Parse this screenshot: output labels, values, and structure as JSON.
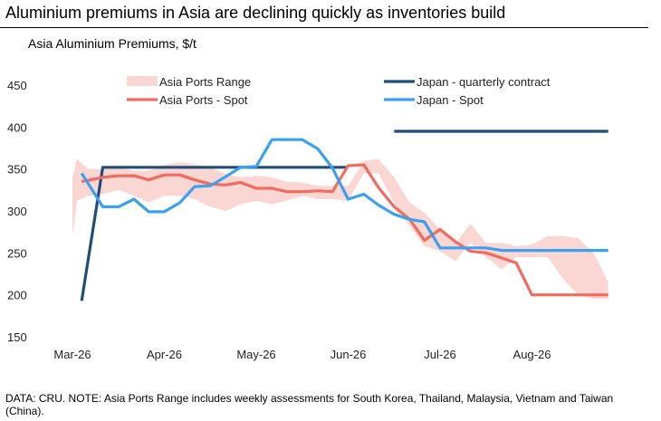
{
  "title": "Aluminium premiums in Asia are declining quickly as inventories build",
  "chart_data": {
    "type": "line",
    "title": "Asia Aluminium Premiums, $/t",
    "xlabel": "",
    "ylabel": "",
    "ylim": [
      150,
      450
    ],
    "yticks": [
      150,
      200,
      250,
      300,
      350,
      400,
      450
    ],
    "xticks": [
      "Mar-26",
      "Apr-26",
      "May-26",
      "Jun-26",
      "Jul-26",
      "Aug-26"
    ],
    "x_start": "Mar-26",
    "x_end": "Sep-26",
    "grid": false,
    "legend_position": "top",
    "legend": [
      "Asia Ports Range",
      "Japan - quarterly contract",
      "Asia Ports - Spot",
      "Japan - Spot"
    ],
    "band": {
      "name": "Asia Ports Range",
      "color": "#fbd7d4",
      "x": [
        0.0,
        0.05,
        0.17,
        0.33,
        0.5,
        0.67,
        0.83,
        1.0,
        1.17,
        1.33,
        1.5,
        1.67,
        1.83,
        2.0,
        2.17,
        2.33,
        2.5,
        2.67,
        2.83,
        3.0,
        3.17,
        3.33,
        3.5,
        3.67,
        3.83,
        4.0,
        4.17,
        4.33,
        4.5,
        4.67,
        4.83,
        5.0,
        5.17,
        5.33,
        5.5,
        5.67,
        5.83
      ],
      "low": [
        270,
        312,
        318,
        320,
        325,
        318,
        310,
        318,
        318,
        314,
        305,
        300,
        308,
        312,
        308,
        312,
        318,
        314,
        314,
        312,
        345,
        345,
        310,
        282,
        258,
        252,
        240,
        262,
        245,
        230,
        245,
        245,
        245,
        220,
        200,
        195,
        195
      ],
      "high": [
        340,
        362,
        350,
        350,
        352,
        348,
        348,
        355,
        358,
        356,
        352,
        344,
        340,
        342,
        340,
        335,
        334,
        330,
        330,
        330,
        360,
        362,
        340,
        310,
        298,
        278,
        262,
        285,
        262,
        262,
        258,
        260,
        270,
        270,
        268,
        250,
        215
      ]
    },
    "series": [
      {
        "name": "Japan - quarterly contract",
        "color": "#1f4e79",
        "segments": [
          {
            "x": [
              0.1,
              0.33,
              3.0
            ],
            "values": [
              193,
              352,
              352
            ]
          },
          {
            "x": [
              3.5,
              5.83
            ],
            "values": [
              395,
              395
            ]
          }
        ]
      },
      {
        "name": "Asia Ports - Spot",
        "color": "#f26b5e",
        "x": [
          0.1,
          0.33,
          0.5,
          0.67,
          0.83,
          1.0,
          1.17,
          1.33,
          1.5,
          1.67,
          1.83,
          2.0,
          2.17,
          2.33,
          2.5,
          2.67,
          2.83,
          3.0,
          3.17,
          3.33,
          3.5,
          3.67,
          3.83,
          4.0,
          4.17,
          4.33,
          4.5,
          4.67,
          4.83,
          5.0,
          5.17,
          5.33,
          5.5,
          5.67,
          5.83
        ],
        "values": [
          335,
          340,
          342,
          342,
          337,
          343,
          343,
          337,
          332,
          331,
          334,
          327,
          327,
          323,
          323,
          324,
          323,
          354,
          355,
          328,
          305,
          290,
          265,
          278,
          263,
          252,
          250,
          244,
          238,
          200,
          200,
          200,
          200,
          200,
          200
        ]
      },
      {
        "name": "Japan - Spot",
        "color": "#3ba0f0",
        "x": [
          0.1,
          0.33,
          0.5,
          0.67,
          0.83,
          1.0,
          1.17,
          1.33,
          1.5,
          1.67,
          1.83,
          2.0,
          2.17,
          2.33,
          2.5,
          2.67,
          2.83,
          3.0,
          3.17,
          3.33,
          3.5,
          3.67,
          3.83,
          4.0,
          4.17,
          4.33,
          4.5,
          4.67,
          4.83,
          5.0,
          5.17,
          5.33,
          5.5,
          5.67,
          5.83
        ],
        "values": [
          345,
          305,
          305,
          314,
          299,
          299,
          310,
          329,
          330,
          341,
          352,
          353,
          385,
          385,
          385,
          374,
          351,
          314,
          320,
          307,
          296,
          290,
          287,
          256,
          256,
          256,
          256,
          253,
          253,
          253,
          253,
          253,
          253,
          253,
          253
        ]
      }
    ]
  },
  "note": "DATA: CRU. NOTE: Asia Ports Range includes weekly assessments for South Korea, Thailand, Malaysia, Vietnam and Taiwan (China)."
}
